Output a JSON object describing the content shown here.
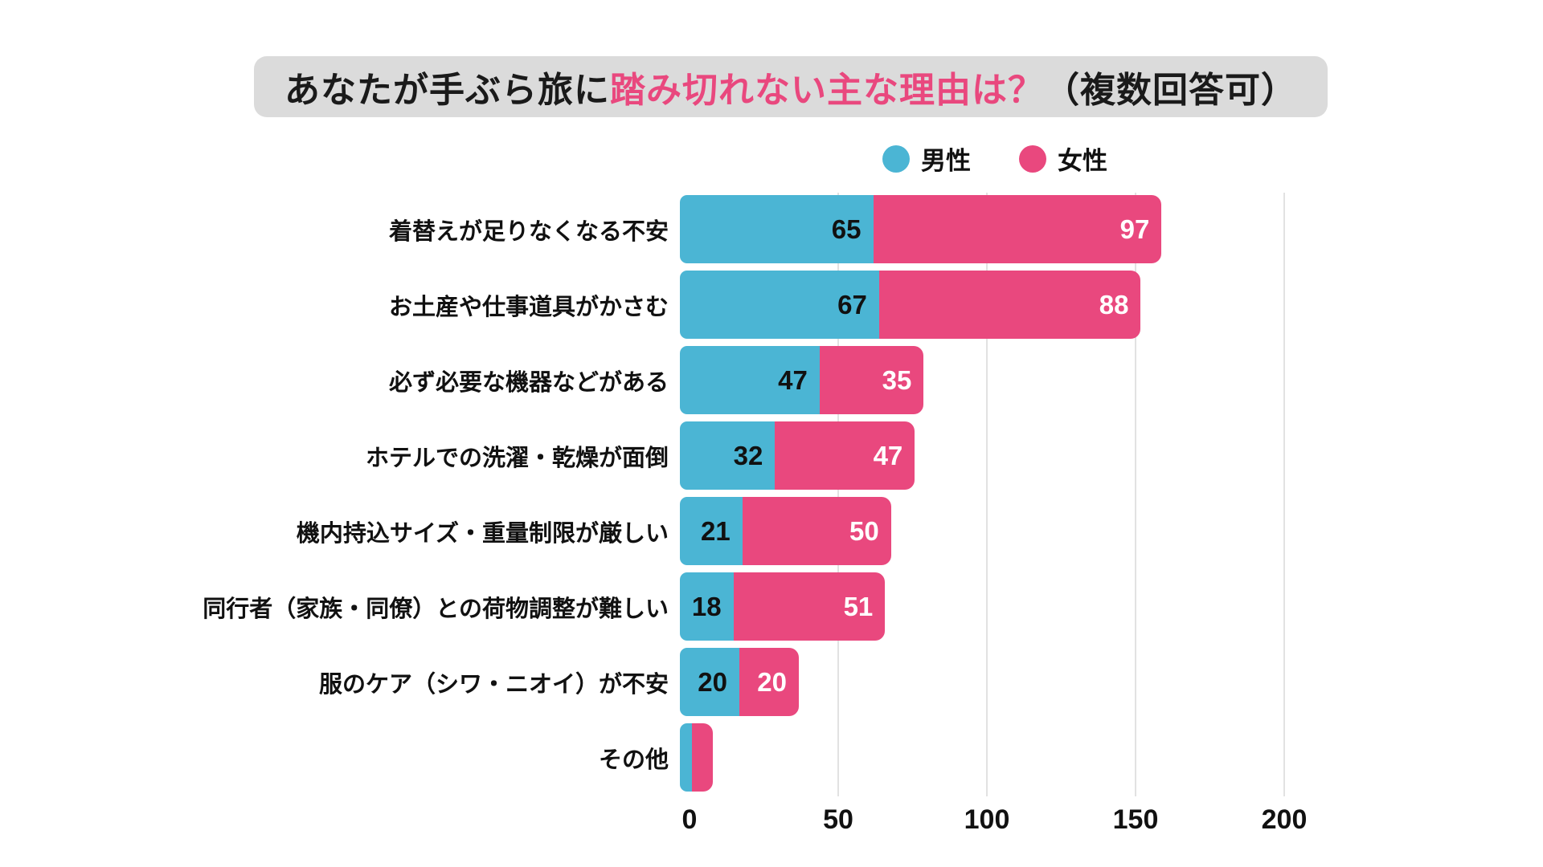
{
  "title": {
    "part1": "あなたが手ぶら旅に",
    "part2": "踏み切れない主な理由は？",
    "part3": "（複数回答可）",
    "highlight_color": "#e9487e",
    "background_color": "#dbdbdb"
  },
  "legend": {
    "items": [
      {
        "label": "男性",
        "color": "#4bb5d4"
      },
      {
        "label": "女性",
        "color": "#e9487e"
      }
    ]
  },
  "chart_data": {
    "type": "bar",
    "orientation": "horizontal-stacked",
    "title": "あなたが手ぶら旅に踏み切れない主な理由は？（複数回答可）",
    "categories": [
      "着替えが足りなくなる不安",
      "お土産や仕事道具がかさむ",
      "必ず必要な機器などがある",
      "ホテルでの洗濯・乾燥が面倒",
      "機内持込サイズ・重量制限が厳しい",
      "同行者（家族・同僚）との荷物調整が難しい",
      "服のケア（シワ・ニオイ）が不安",
      "その他"
    ],
    "series": [
      {
        "name": "男性",
        "color": "#4bb5d4",
        "values": [
          65,
          67,
          47,
          32,
          21,
          18,
          20,
          3
        ]
      },
      {
        "name": "女性",
        "color": "#e9487e",
        "values": [
          97,
          88,
          35,
          47,
          50,
          51,
          20,
          7
        ]
      }
    ],
    "value_labels_hidden_for": [
      "その他"
    ],
    "xlim": [
      0,
      200
    ],
    "xticks": [
      0,
      50,
      100,
      150,
      200
    ],
    "grid": "vertical",
    "legend_position": "top-right",
    "colors": {
      "grid": "#e2e2e2",
      "male_value_text": "#111111",
      "female_value_text": "#ffffff"
    }
  }
}
